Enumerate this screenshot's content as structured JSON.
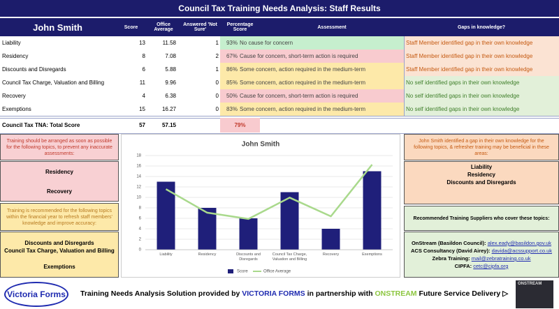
{
  "header": {
    "title": "Council Tax Training Needs Analysis: Staff Results"
  },
  "table": {
    "columns": [
      "John Smith",
      "Score",
      "Office Average",
      "Answered 'Not Sure'",
      "Percentage Score",
      "Assessment",
      "Gaps in knowledge?"
    ],
    "rows": [
      {
        "topic": "Liability",
        "score": 13,
        "office_average": 11.58,
        "not_sure": 1,
        "percentage": "93%",
        "assessment": "No cause for concern",
        "gap": "Staff Member identified gap in their own knowledge",
        "assessment_color": "#c6efce",
        "gap_color": "#fbe3d3",
        "gap_text_color": "#c55a11"
      },
      {
        "topic": "Residency",
        "score": 8,
        "office_average": 7.08,
        "not_sure": 2,
        "percentage": "67%",
        "assessment": "Cause for concern, short-term action is required",
        "gap": "Staff Member identified gap in their own knowledge",
        "assessment_color": "#f8cbcf",
        "gap_color": "#fbe3d3",
        "gap_text_color": "#c55a11"
      },
      {
        "topic": "Discounts and Disregards",
        "score": 6,
        "office_average": 5.88,
        "not_sure": 1,
        "percentage": "86%",
        "assessment": "Some concern, action required in the medium-term",
        "gap": "Staff Member identified gap in their own knowledge",
        "assessment_color": "#fde9a9",
        "gap_color": "#fbe3d3",
        "gap_text_color": "#c55a11"
      },
      {
        "topic": "Council Tax Charge, Valuation and Billing",
        "score": 11,
        "office_average": 9.96,
        "not_sure": 0,
        "percentage": "85%",
        "assessment": "Some concern, action required in the medium-term",
        "gap": "No self identified gaps in their own knowledge",
        "assessment_color": "#fde9a9",
        "gap_color": "#e2f0d9",
        "gap_text_color": "#3f7f2a"
      },
      {
        "topic": "Recovery",
        "score": 4,
        "office_average": 6.38,
        "not_sure": 0,
        "percentage": "50%",
        "assessment": "Cause for concern, short-term action is required",
        "gap": "No self identified gaps in their own knowledge",
        "assessment_color": "#f8cbcf",
        "gap_color": "#e2f0d9",
        "gap_text_color": "#3f7f2a"
      },
      {
        "topic": "Exemptions",
        "score": 15,
        "office_average": 16.27,
        "not_sure": 0,
        "percentage": "83%",
        "assessment": "Some concern, action required in the medium-term",
        "gap": "No self identified gaps in their own knowledge",
        "assessment_color": "#fde9a9",
        "gap_color": "#e2f0d9",
        "gap_text_color": "#3f7f2a"
      }
    ],
    "total": {
      "label": "Council Tax TNA: Total Score",
      "score": 57,
      "office_average": 57.15,
      "percentage": "79%"
    }
  },
  "left_panel": {
    "urgent_note": "Training should be arranged as soon as possible for the following topics, to prevent any inaccurate assessments:",
    "urgent_topics": [
      "Residency",
      "Recovery"
    ],
    "recommended_note": "Training is recommended for the following topics within the financial year to refresh staff members' knowledge and improve accuracy:",
    "recommended_topics": [
      "Discounts and Disregards",
      "Council Tax Charge, Valuation and Billing",
      "Exemptions"
    ]
  },
  "right_panel": {
    "gap_note": "John Smith identified a gap in their own knowledge for the following topics, & refresher training may be beneficial in these areas:",
    "gap_topics": [
      "Liability",
      "Residency",
      "Discounts and Disregards"
    ],
    "suppliers_title": "Recommended Training Suppliers who cover these topics:",
    "suppliers": [
      {
        "name": "OnStream (Basildon Council):",
        "email": "alex.eady@basildon.gov.uk"
      },
      {
        "name": "ACS Consultancy (David Airey):",
        "email": "davida@acssupport.co.uk"
      },
      {
        "name": "Zebra Training:",
        "email": "mail@zebratraining.co.uk"
      },
      {
        "name": "CIPFA:",
        "email": "cetc@cipfa.org"
      }
    ]
  },
  "chart_data": {
    "type": "bar",
    "title": "John Smith",
    "categories": [
      "Liability",
      "Residency",
      "Discounts and Disregards",
      "Council Tax Charge, Valuation and Billing",
      "Recovery",
      "Exemptions"
    ],
    "series": [
      {
        "name": "Score",
        "color": "#1f1f7a",
        "type": "bar",
        "values": [
          13,
          8,
          6,
          11,
          4,
          15
        ]
      },
      {
        "name": "Office Average",
        "color": "#a9d98c",
        "type": "line",
        "values": [
          11.58,
          7.08,
          5.88,
          9.96,
          6.38,
          16.27
        ]
      }
    ],
    "ylim": [
      0,
      18
    ],
    "yticks": [
      0,
      2,
      4,
      6,
      8,
      10,
      12,
      14,
      16,
      18
    ],
    "grid": true
  },
  "footer": {
    "logo": "Victoria Forms",
    "parts": [
      {
        "text": "Training Needs Analysis Solution provided by ",
        "color": "#000000"
      },
      {
        "text": "VICTORIA FORMS",
        "color": "#1f2bb0"
      },
      {
        "text": " in partnership with ",
        "color": "#000000"
      },
      {
        "text": "ONSTREAM",
        "color": "#8cc63f"
      },
      {
        "text": " Future Service Delivery ▷",
        "color": "#000000"
      }
    ],
    "right_logo": "ONSTREAM"
  }
}
